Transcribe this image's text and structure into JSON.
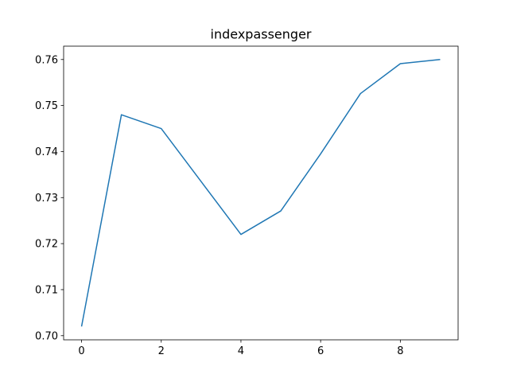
{
  "chart_data": {
    "type": "line",
    "title": "indexpassenger",
    "xlabel": "",
    "ylabel": "",
    "xlim": [
      -0.45,
      9.45
    ],
    "ylim": [
      0.6991,
      0.7629
    ],
    "xticks": [
      0,
      2,
      4,
      6,
      8
    ],
    "xtick_labels": [
      "0",
      "2",
      "4",
      "6",
      "8"
    ],
    "yticks": [
      0.7,
      0.71,
      0.72,
      0.73,
      0.74,
      0.75,
      0.76
    ],
    "ytick_labels": [
      "0.70",
      "0.71",
      "0.72",
      "0.73",
      "0.74",
      "0.75",
      "0.76"
    ],
    "grid": false,
    "legend": "none",
    "series": [
      {
        "color": "#1f77b4",
        "x": [
          0,
          1,
          2,
          3,
          4,
          5,
          6,
          7,
          8,
          9
        ],
        "y": [
          0.702,
          0.748,
          0.745,
          0.7335,
          0.722,
          0.7271,
          0.7395,
          0.7526,
          0.7591,
          0.76
        ]
      }
    ]
  }
}
